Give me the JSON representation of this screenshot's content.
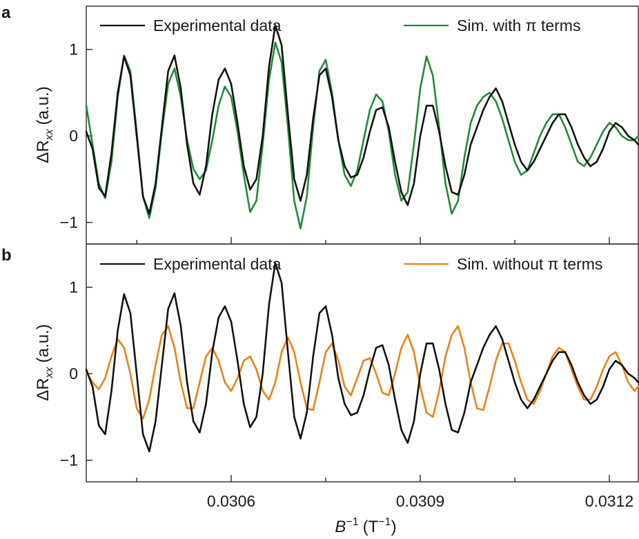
{
  "chart_data": [
    {
      "type": "line",
      "panel_label": "a",
      "ylabel_prefix": "ΔR",
      "ylabel_sub": "xx",
      "ylabel_suffix": "(a.u.)",
      "xlim": [
        0.03037,
        0.031246
      ],
      "ylim": [
        -1.25,
        1.5
      ],
      "yticks": [
        -1,
        0,
        1
      ],
      "ytick_labels": [
        "−1",
        "0",
        "1"
      ],
      "xticks_major": [
        0.0306,
        0.0309,
        0.0312
      ],
      "xticks_minor": [
        0.03045,
        0.03075,
        0.03105
      ],
      "x": [
        0.03037,
        0.03038,
        0.03039,
        0.0304,
        0.03041,
        0.03042,
        0.03043,
        0.03044,
        0.03045,
        0.03046,
        0.03047,
        0.03048,
        0.03049,
        0.0305,
        0.03051,
        0.03052,
        0.03053,
        0.03054,
        0.03055,
        0.03056,
        0.03057,
        0.03058,
        0.03059,
        0.0306,
        0.03061,
        0.03062,
        0.03063,
        0.03064,
        0.03065,
        0.03066,
        0.03067,
        0.03068,
        0.03069,
        0.0307,
        0.03071,
        0.03072,
        0.03073,
        0.03074,
        0.03075,
        0.03076,
        0.03077,
        0.03078,
        0.03079,
        0.0308,
        0.03081,
        0.03082,
        0.03083,
        0.03084,
        0.03085,
        0.03086,
        0.03087,
        0.03088,
        0.03089,
        0.0309,
        0.03091,
        0.03092,
        0.03093,
        0.03094,
        0.03095,
        0.03096,
        0.03097,
        0.03098,
        0.03099,
        0.031,
        0.03101,
        0.03102,
        0.03103,
        0.03104,
        0.03105,
        0.03106,
        0.03107,
        0.03108,
        0.03109,
        0.0311,
        0.03111,
        0.03112,
        0.03113,
        0.03114,
        0.03115,
        0.03116,
        0.03117,
        0.03118,
        0.03119,
        0.0312,
        0.03121,
        0.03122,
        0.03123,
        0.03124,
        0.031246
      ],
      "series": [
        {
          "name": "Experimental data",
          "color": "#111111",
          "values": [
            0.05,
            -0.15,
            -0.6,
            -0.7,
            -0.2,
            0.5,
            0.92,
            0.7,
            0.0,
            -0.7,
            -0.9,
            -0.55,
            0.1,
            0.75,
            0.93,
            0.55,
            -0.1,
            -0.55,
            -0.68,
            -0.35,
            0.25,
            0.65,
            0.78,
            0.6,
            0.15,
            -0.35,
            -0.62,
            -0.5,
            0.0,
            0.8,
            1.28,
            1.05,
            0.25,
            -0.5,
            -0.75,
            -0.45,
            0.2,
            0.7,
            0.78,
            0.45,
            -0.05,
            -0.35,
            -0.48,
            -0.45,
            -0.25,
            0.05,
            0.3,
            0.33,
            0.1,
            -0.3,
            -0.65,
            -0.8,
            -0.55,
            0.0,
            0.35,
            0.35,
            0.05,
            -0.35,
            -0.65,
            -0.68,
            -0.45,
            -0.1,
            0.1,
            0.3,
            0.45,
            0.55,
            0.4,
            0.15,
            -0.1,
            -0.3,
            -0.4,
            -0.3,
            -0.15,
            0.0,
            0.15,
            0.25,
            0.25,
            0.1,
            -0.1,
            -0.25,
            -0.35,
            -0.3,
            -0.15,
            0.05,
            0.15,
            0.1,
            0.0,
            -0.05,
            -0.1
          ]
        },
        {
          "name": "Sim. with π terms",
          "color": "#1f8a3a",
          "values": [
            0.35,
            -0.1,
            -0.55,
            -0.72,
            -0.3,
            0.45,
            0.93,
            0.75,
            0.05,
            -0.7,
            -0.95,
            -0.6,
            0.05,
            0.6,
            0.78,
            0.45,
            -0.05,
            -0.38,
            -0.5,
            -0.4,
            -0.05,
            0.35,
            0.57,
            0.45,
            0.05,
            -0.45,
            -0.88,
            -0.75,
            -0.1,
            0.65,
            1.08,
            0.85,
            0.1,
            -0.75,
            -1.07,
            -0.7,
            0.1,
            0.75,
            0.88,
            0.5,
            -0.05,
            -0.45,
            -0.58,
            -0.4,
            -0.05,
            0.3,
            0.48,
            0.4,
            0.05,
            -0.45,
            -0.75,
            -0.65,
            -0.1,
            0.55,
            0.92,
            0.7,
            0.1,
            -0.55,
            -0.9,
            -0.75,
            -0.25,
            0.15,
            0.35,
            0.45,
            0.5,
            0.4,
            0.2,
            -0.05,
            -0.3,
            -0.45,
            -0.4,
            -0.2,
            0.0,
            0.15,
            0.25,
            0.25,
            0.1,
            -0.1,
            -0.3,
            -0.35,
            -0.25,
            -0.1,
            0.05,
            0.15,
            0.1,
            0.0,
            -0.05,
            -0.05,
            0.0
          ]
        }
      ]
    },
    {
      "type": "line",
      "panel_label": "b",
      "ylabel_prefix": "ΔR",
      "ylabel_sub": "xx",
      "ylabel_suffix": "(a.u.)",
      "xlim": [
        0.03037,
        0.031246
      ],
      "ylim": [
        -1.25,
        1.5
      ],
      "yticks": [
        -1,
        0,
        1
      ],
      "ytick_labels": [
        "−1",
        "0",
        "1"
      ],
      "xticks_major": [
        0.0306,
        0.0309,
        0.0312
      ],
      "xtick_labels": [
        "0.0306",
        "0.0309",
        "0.0312"
      ],
      "xticks_minor": [
        0.03045,
        0.03075,
        0.03105
      ],
      "xlabel_base": "B",
      "xlabel_sup": "−1",
      "xlabel_unit": "(T",
      "xlabel_unit_sup": "−1",
      "xlabel_close": ")",
      "x": [
        0.03037,
        0.03038,
        0.03039,
        0.0304,
        0.03041,
        0.03042,
        0.03043,
        0.03044,
        0.03045,
        0.03046,
        0.03047,
        0.03048,
        0.03049,
        0.0305,
        0.03051,
        0.03052,
        0.03053,
        0.03054,
        0.03055,
        0.03056,
        0.03057,
        0.03058,
        0.03059,
        0.0306,
        0.03061,
        0.03062,
        0.03063,
        0.03064,
        0.03065,
        0.03066,
        0.03067,
        0.03068,
        0.03069,
        0.0307,
        0.03071,
        0.03072,
        0.03073,
        0.03074,
        0.03075,
        0.03076,
        0.03077,
        0.03078,
        0.03079,
        0.0308,
        0.03081,
        0.03082,
        0.03083,
        0.03084,
        0.03085,
        0.03086,
        0.03087,
        0.03088,
        0.03089,
        0.0309,
        0.03091,
        0.03092,
        0.03093,
        0.03094,
        0.03095,
        0.03096,
        0.03097,
        0.03098,
        0.03099,
        0.031,
        0.03101,
        0.03102,
        0.03103,
        0.03104,
        0.03105,
        0.03106,
        0.03107,
        0.03108,
        0.03109,
        0.0311,
        0.03111,
        0.03112,
        0.03113,
        0.03114,
        0.03115,
        0.03116,
        0.03117,
        0.03118,
        0.03119,
        0.0312,
        0.03121,
        0.03122,
        0.03123,
        0.03124,
        0.031246
      ],
      "series": [
        {
          "name": "Experimental data",
          "color": "#111111",
          "values": [
            0.05,
            -0.15,
            -0.6,
            -0.7,
            -0.2,
            0.5,
            0.92,
            0.7,
            0.0,
            -0.7,
            -0.9,
            -0.55,
            0.1,
            0.75,
            0.93,
            0.55,
            -0.1,
            -0.55,
            -0.68,
            -0.35,
            0.25,
            0.65,
            0.78,
            0.6,
            0.15,
            -0.35,
            -0.62,
            -0.5,
            0.0,
            0.8,
            1.28,
            1.05,
            0.25,
            -0.5,
            -0.75,
            -0.45,
            0.2,
            0.7,
            0.78,
            0.45,
            -0.05,
            -0.35,
            -0.48,
            -0.45,
            -0.25,
            0.05,
            0.3,
            0.33,
            0.1,
            -0.3,
            -0.65,
            -0.8,
            -0.55,
            0.0,
            0.35,
            0.35,
            0.05,
            -0.35,
            -0.65,
            -0.68,
            -0.45,
            -0.1,
            0.1,
            0.3,
            0.45,
            0.55,
            0.4,
            0.15,
            -0.1,
            -0.3,
            -0.4,
            -0.3,
            -0.15,
            0.0,
            0.15,
            0.25,
            0.25,
            0.1,
            -0.1,
            -0.25,
            -0.35,
            -0.3,
            -0.15,
            0.05,
            0.15,
            0.1,
            0.0,
            -0.05,
            -0.1
          ]
        },
        {
          "name": "Sim. without π terms",
          "color": "#f07f13",
          "values": [
            0.02,
            -0.1,
            -0.18,
            -0.05,
            0.2,
            0.4,
            0.3,
            0.0,
            -0.4,
            -0.52,
            -0.3,
            0.1,
            0.45,
            0.55,
            0.3,
            -0.1,
            -0.4,
            -0.4,
            -0.1,
            0.2,
            0.3,
            0.15,
            -0.1,
            -0.2,
            -0.05,
            0.15,
            0.2,
            0.05,
            -0.2,
            -0.3,
            -0.1,
            0.25,
            0.42,
            0.25,
            -0.1,
            -0.4,
            -0.42,
            -0.1,
            0.25,
            0.35,
            0.15,
            -0.15,
            -0.25,
            -0.05,
            0.15,
            0.18,
            0.0,
            -0.22,
            -0.25,
            0.0,
            0.3,
            0.45,
            0.25,
            -0.15,
            -0.45,
            -0.5,
            -0.2,
            0.2,
            0.45,
            0.55,
            0.3,
            -0.1,
            -0.4,
            -0.42,
            -0.15,
            0.15,
            0.35,
            0.35,
            0.15,
            -0.1,
            -0.3,
            -0.35,
            -0.2,
            0.0,
            0.2,
            0.3,
            0.25,
            0.05,
            -0.15,
            -0.3,
            -0.3,
            -0.15,
            0.05,
            0.2,
            0.25,
            0.1,
            -0.1,
            -0.2,
            -0.15
          ]
        }
      ]
    }
  ]
}
